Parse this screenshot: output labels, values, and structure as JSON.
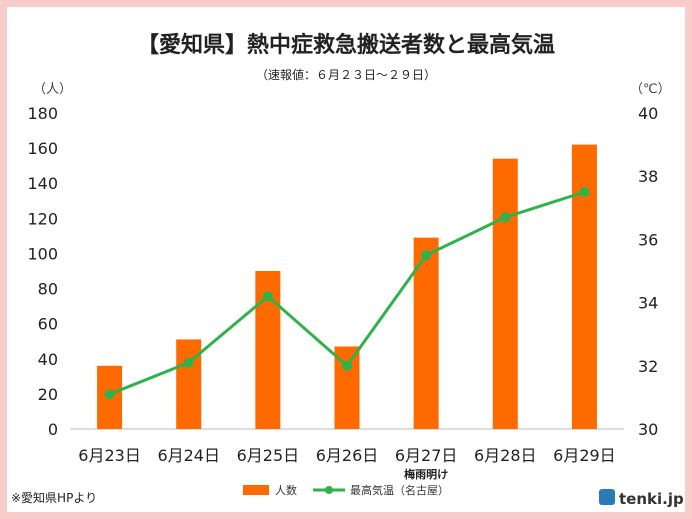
{
  "chart_data": {
    "type": "bar",
    "title": "【愛知県】熱中症救急搬送者数と最高気温",
    "subtitle": "（速報値：６月２３日〜２９日）",
    "categories": [
      "6月23日",
      "6月24日",
      "6月25日",
      "6月26日",
      "6月27日",
      "6月28日",
      "6月29日"
    ],
    "category_annotation": {
      "category": "6月27日",
      "text": "梅雨明け"
    },
    "y_left": {
      "unit_label": "（人）",
      "ylim": [
        0,
        180
      ],
      "ticks": [
        "180",
        "160",
        "140",
        "120",
        "100",
        "80",
        "60",
        "40",
        "20",
        "0"
      ]
    },
    "y_right": {
      "unit_label": "（℃）",
      "ylim": [
        30,
        40
      ],
      "ticks": [
        "40",
        "38",
        "36",
        "34",
        "32",
        "30"
      ]
    },
    "series": [
      {
        "name": "人数",
        "type": "bar",
        "axis": "left",
        "color": "#ff6a00",
        "values": [
          36,
          51,
          90,
          47,
          109,
          154,
          162
        ]
      },
      {
        "name": "最高気温（名古屋）",
        "type": "line",
        "axis": "right",
        "color": "#2db34a",
        "values": [
          31.1,
          32.1,
          34.2,
          32.0,
          35.5,
          36.7,
          37.5
        ]
      }
    ],
    "grid": false,
    "legend_position": "bottom"
  },
  "source_note": "※愛知県HPより",
  "brand": "tenki.jp"
}
